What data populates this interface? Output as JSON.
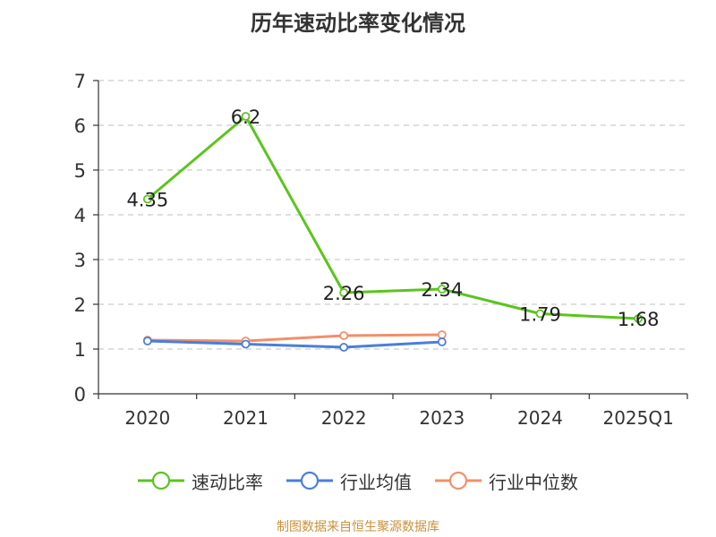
{
  "chart_data": {
    "type": "line",
    "title": "历年速动比率变化情况",
    "categories": [
      "2020",
      "2021",
      "2022",
      "2023",
      "2024",
      "2025Q1"
    ],
    "ylim": [
      0,
      7
    ],
    "yticks": [
      0,
      1,
      2,
      3,
      4,
      5,
      6,
      7
    ],
    "grid": true,
    "legend_position": "bottom",
    "series": [
      {
        "name": "速动比率",
        "color": "#5cc41e",
        "values": [
          4.35,
          6.2,
          2.26,
          2.34,
          1.79,
          1.68
        ],
        "labels": true
      },
      {
        "name": "行业均值",
        "color": "#4a7fd9",
        "values": [
          1.18,
          1.11,
          1.04,
          1.16,
          null,
          null
        ],
        "labels": false
      },
      {
        "name": "行业中位数",
        "color": "#f19069",
        "values": [
          1.2,
          1.18,
          1.3,
          1.32,
          null,
          null
        ],
        "labels": false
      }
    ]
  },
  "footer": {
    "source": "制图数据来自恒生聚源数据库"
  }
}
